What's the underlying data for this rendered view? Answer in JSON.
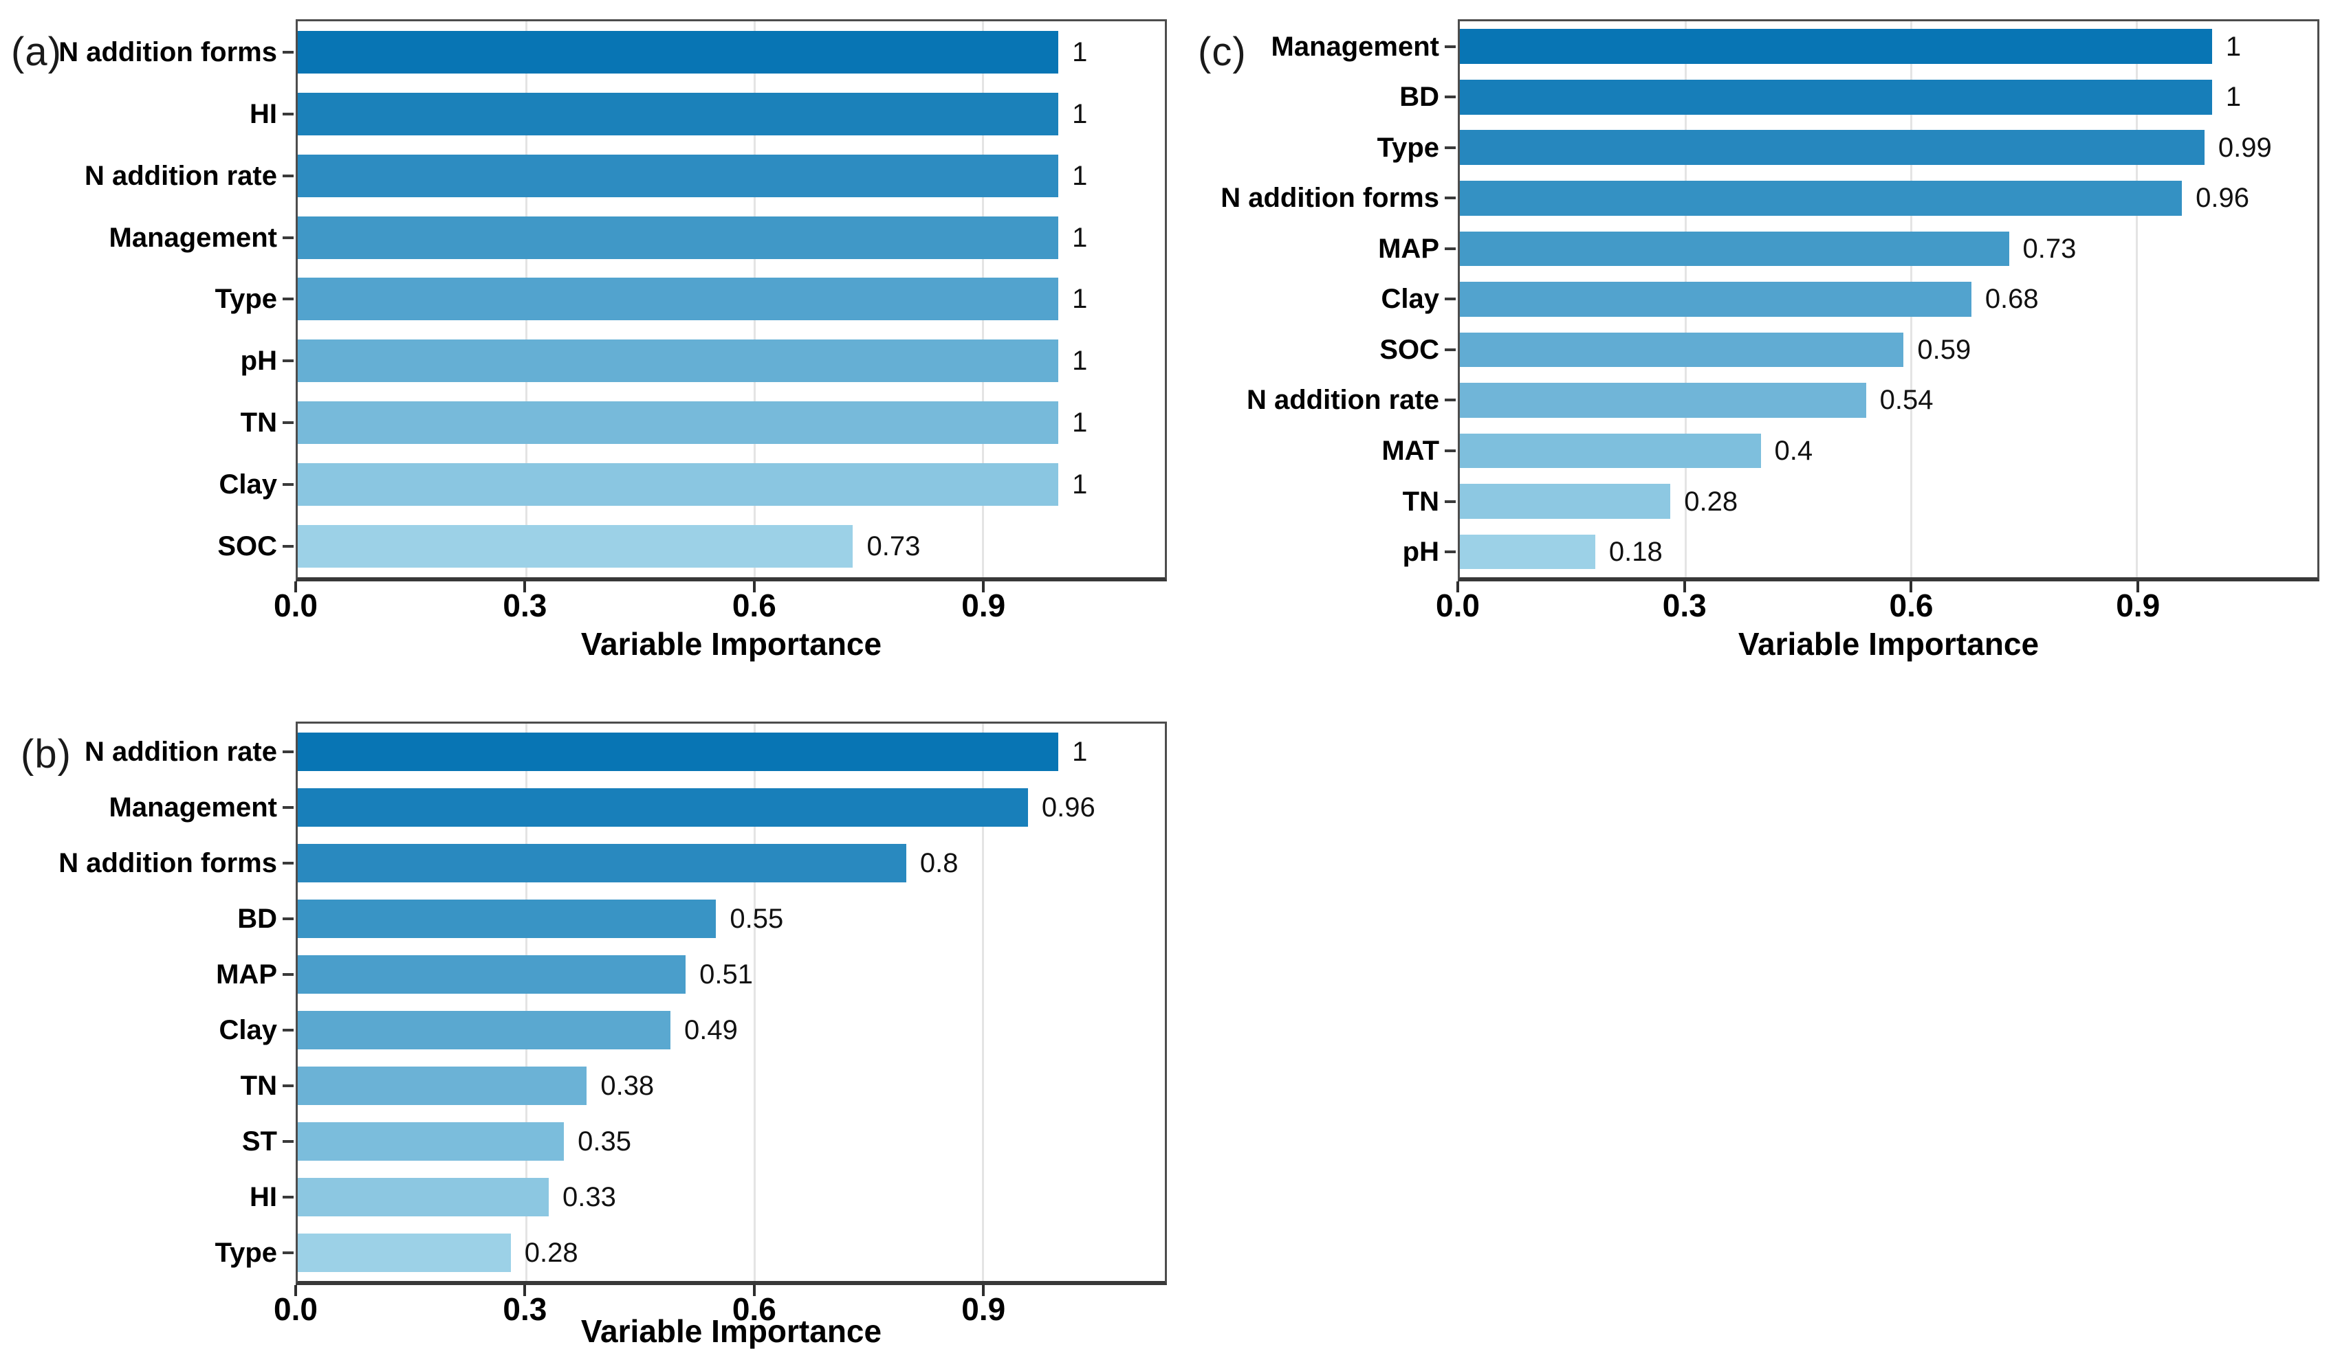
{
  "figure": {
    "description_text": "",
    "x_axis_title": "Variable Importance"
  },
  "colors": {
    "bar_color_dark": "#0875B4",
    "bar_color_light": "#9CD1E7",
    "gridline": "#E4E4E4",
    "plot_border": "#4D4D4D",
    "axis_line": "#383838",
    "text": "#000000",
    "background": "#FFFFFF"
  },
  "chart_data": [
    {
      "panel": "a",
      "letter": "(a)",
      "type": "bar",
      "orientation": "horizontal",
      "title": "",
      "xlabel": "Variable Importance",
      "ylabel": "",
      "categories": [
        "N addition forms",
        "HI",
        "N addition rate",
        "Management",
        "Type",
        "pH",
        "TN",
        "Clay",
        "SOC"
      ],
      "values": [
        1,
        1,
        1,
        1,
        1,
        1,
        1,
        1,
        0.73
      ],
      "value_labels": [
        "1",
        "1",
        "1",
        "1",
        "1",
        "1",
        "1",
        "1",
        "0.73"
      ],
      "xlim": [
        0,
        1.14
      ],
      "xticks": [
        0,
        0.3,
        0.6,
        0.9
      ],
      "xtick_labels": [
        "0.0",
        "0.3",
        "0.6",
        "0.9"
      ],
      "grid": true,
      "legend": false
    },
    {
      "panel": "b",
      "letter": "(b)",
      "type": "bar",
      "orientation": "horizontal",
      "title": "",
      "xlabel": "Variable Importance",
      "ylabel": "",
      "categories": [
        "N addition rate",
        "Management",
        "N addition forms",
        "BD",
        "MAP",
        "Clay",
        "TN",
        "ST",
        "HI",
        "Type"
      ],
      "values": [
        1,
        0.96,
        0.8,
        0.55,
        0.51,
        0.49,
        0.38,
        0.35,
        0.33,
        0.28
      ],
      "value_labels": [
        "1",
        "0.96",
        "0.8",
        "0.55",
        "0.51",
        "0.49",
        "0.38",
        "0.35",
        "0.33",
        "0.28"
      ],
      "xlim": [
        0,
        1.14
      ],
      "xticks": [
        0,
        0.3,
        0.6,
        0.9
      ],
      "xtick_labels": [
        "0.0",
        "0.3",
        "0.6",
        "0.9"
      ],
      "grid": true,
      "legend": false
    },
    {
      "panel": "c",
      "letter": "(c)",
      "type": "bar",
      "orientation": "horizontal",
      "title": "",
      "xlabel": "Variable Importance",
      "ylabel": "",
      "categories": [
        "Management",
        "BD",
        "Type",
        "N addition forms",
        "MAP",
        "Clay",
        "SOC",
        "N addition rate",
        "MAT",
        "TN",
        "pH"
      ],
      "values": [
        1,
        1,
        0.99,
        0.96,
        0.73,
        0.68,
        0.59,
        0.54,
        0.4,
        0.28,
        0.18
      ],
      "value_labels": [
        "1",
        "1",
        "0.99",
        "0.96",
        "0.73",
        "0.68",
        "0.59",
        "0.54",
        "0.4",
        "0.28",
        "0.18"
      ],
      "xlim": [
        0,
        1.14
      ],
      "xticks": [
        0,
        0.3,
        0.6,
        0.9
      ],
      "xtick_labels": [
        "0.0",
        "0.3",
        "0.6",
        "0.9"
      ],
      "grid": true,
      "legend": false
    }
  ]
}
